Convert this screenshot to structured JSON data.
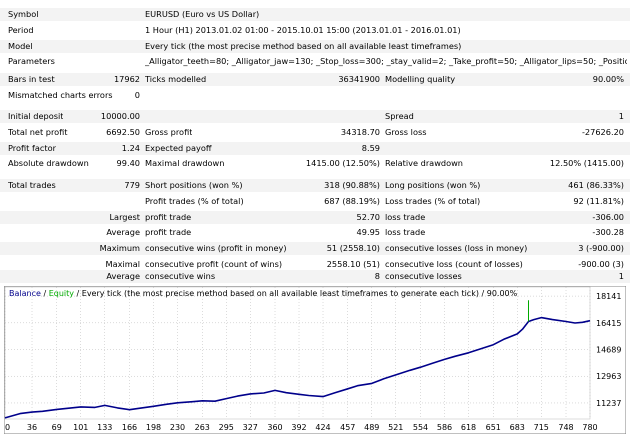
{
  "report": {
    "symbol": {
      "label": "Symbol",
      "value": "EURUSD (Euro vs US Dollar)"
    },
    "period": {
      "label": "Period",
      "value": "1 Hour (H1) 2013.01.02 01:00 - 2015.10.01 15:00 (2013.01.01 - 2016.01.01)"
    },
    "model": {
      "label": "Model",
      "value": "Every tick (the most precise method based on all available least timeframes)"
    },
    "parameters": {
      "label": "Parameters",
      "value": "_Alligator_teeth=80; _Alligator_jaw=130; _Stop_loss=300; _stay_valid=2; _Take_profit=50; _Alligator_lips=50; _Position_size=1;"
    },
    "bars_in_test": {
      "label": "Bars in test",
      "value": "17962"
    },
    "ticks_modelled": {
      "label": "Ticks modelled",
      "value": "36341900"
    },
    "modelling_quality": {
      "label": "Modelling quality",
      "value": "90.00%"
    },
    "mismatched": {
      "label": "Mismatched charts errors",
      "value": "0"
    },
    "initial_deposit": {
      "label": "Initial deposit",
      "value": "10000.00"
    },
    "spread": {
      "label": "Spread",
      "value": "1"
    },
    "total_net_profit": {
      "label": "Total net profit",
      "value": "6692.50"
    },
    "gross_profit": {
      "label": "Gross profit",
      "value": "34318.70"
    },
    "gross_loss": {
      "label": "Gross loss",
      "value": "-27626.20"
    },
    "profit_factor": {
      "label": "Profit factor",
      "value": "1.24"
    },
    "expected_payoff": {
      "label": "Expected payoff",
      "value": "8.59"
    },
    "absolute_drawdown": {
      "label": "Absolute drawdown",
      "value": "99.40"
    },
    "maximal_drawdown": {
      "label": "Maximal drawdown",
      "value": "1415.00 (12.50%)"
    },
    "relative_drawdown": {
      "label": "Relative drawdown",
      "value": "12.50% (1415.00)"
    },
    "total_trades": {
      "label": "Total trades",
      "value": "779"
    },
    "short_positions": {
      "label": "Short positions (won %)",
      "value": "318 (90.88%)"
    },
    "long_positions": {
      "label": "Long positions (won %)",
      "value": "461 (86.33%)"
    },
    "profit_trades": {
      "label": "Profit trades (% of total)",
      "value": "687 (88.19%)"
    },
    "loss_trades": {
      "label": "Loss trades (% of total)",
      "value": "92 (11.81%)"
    },
    "largest": {
      "qualifier": "Largest",
      "profit_label": "profit trade",
      "profit_value": "52.70",
      "loss_label": "loss trade",
      "loss_value": "-306.00"
    },
    "average": {
      "qualifier": "Average",
      "profit_label": "profit trade",
      "profit_value": "49.95",
      "loss_label": "loss trade",
      "loss_value": "-300.28"
    },
    "maximum": {
      "qualifier": "Maximum",
      "profit_label": "consecutive wins (profit in money)",
      "profit_value": "51 (2558.10)",
      "loss_label": "consecutive losses (loss in money)",
      "loss_value": "3 (-900.00)"
    },
    "maximal": {
      "qualifier": "Maximal",
      "profit_label": "consecutive profit (count of wins)",
      "profit_value": "2558.10 (51)",
      "loss_label": "consecutive loss (count of losses)",
      "loss_value": "-900.00 (3)"
    },
    "average_consecutive": {
      "qualifier": "Average",
      "profit_label": "consecutive wins",
      "profit_value": "8",
      "loss_label": "consecutive losses",
      "loss_value": "1"
    }
  },
  "chart_header": {
    "balance": "Balance",
    "sep": " / ",
    "equity": "Equity",
    "rest": " / Every tick (the most precise method based on all available least timeframes to generate each tick) / 90.00%"
  },
  "colors": {
    "balance": "#00008b",
    "equity": "#00aa00",
    "grid": "#b8b8b8"
  },
  "chart_data": {
    "type": "line",
    "x_ticks": [
      "0",
      "36",
      "69",
      "101",
      "133",
      "166",
      "198",
      "230",
      "263",
      "295",
      "327",
      "360",
      "392",
      "424",
      "457",
      "489",
      "521",
      "554",
      "586",
      "618",
      "651",
      "683",
      "715",
      "748",
      "780"
    ],
    "y_ticks": [
      "18141",
      "16415",
      "14689",
      "12963",
      "11237"
    ],
    "xlim": [
      0,
      780
    ],
    "ylim": [
      10201,
      18729
    ],
    "series": [
      {
        "name": "Balance",
        "points": [
          [
            0,
            10270
          ],
          [
            20,
            10550
          ],
          [
            36,
            10650
          ],
          [
            50,
            10700
          ],
          [
            69,
            10820
          ],
          [
            85,
            10900
          ],
          [
            101,
            10980
          ],
          [
            120,
            10950
          ],
          [
            133,
            11080
          ],
          [
            150,
            10920
          ],
          [
            166,
            10800
          ],
          [
            180,
            10900
          ],
          [
            198,
            11020
          ],
          [
            215,
            11150
          ],
          [
            230,
            11250
          ],
          [
            250,
            11320
          ],
          [
            263,
            11380
          ],
          [
            280,
            11350
          ],
          [
            295,
            11520
          ],
          [
            310,
            11680
          ],
          [
            327,
            11820
          ],
          [
            345,
            11880
          ],
          [
            360,
            12050
          ],
          [
            375,
            11900
          ],
          [
            392,
            11800
          ],
          [
            405,
            11720
          ],
          [
            424,
            11650
          ],
          [
            440,
            11900
          ],
          [
            457,
            12150
          ],
          [
            470,
            12350
          ],
          [
            489,
            12500
          ],
          [
            505,
            12800
          ],
          [
            521,
            13050
          ],
          [
            540,
            13350
          ],
          [
            554,
            13550
          ],
          [
            570,
            13800
          ],
          [
            586,
            14050
          ],
          [
            600,
            14250
          ],
          [
            618,
            14480
          ],
          [
            635,
            14750
          ],
          [
            651,
            15000
          ],
          [
            665,
            15350
          ],
          [
            683,
            15700
          ],
          [
            690,
            16000
          ],
          [
            698,
            16500
          ],
          [
            705,
            16620
          ],
          [
            715,
            16750
          ],
          [
            730,
            16620
          ],
          [
            748,
            16500
          ],
          [
            760,
            16400
          ],
          [
            770,
            16450
          ],
          [
            780,
            16550
          ]
        ]
      },
      {
        "name": "Equity",
        "points": [
          [
            698,
            16500
          ],
          [
            698,
            17850
          ],
          [
            698,
            16520
          ]
        ]
      }
    ]
  }
}
